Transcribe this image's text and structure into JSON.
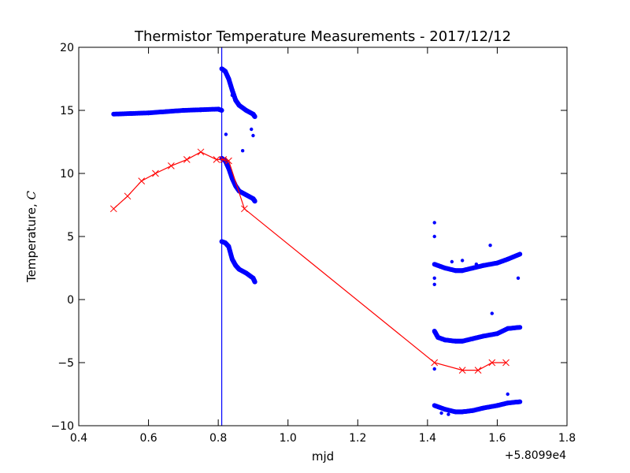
{
  "chart_data": {
    "type": "scatter",
    "title": "Thermistor Temperature Measurements - 2017/12/12",
    "xlabel": "mjd",
    "ylabel_text": "Temperature, ",
    "ylabel_symbol": "C",
    "offset_label": "+5.8099e4",
    "xlim": [
      0.4,
      1.8
    ],
    "ylim": [
      -10,
      20
    ],
    "xticks": [
      0.4,
      0.6,
      0.8,
      1.0,
      1.2,
      1.4,
      1.6,
      1.8
    ],
    "xtick_labels": [
      "0.4",
      "0.6",
      "0.8",
      "1.0",
      "1.2",
      "1.4",
      "1.6",
      "1.8"
    ],
    "yticks": [
      -10,
      -5,
      0,
      5,
      10,
      15,
      20
    ],
    "ytick_labels": [
      "−10",
      "−5",
      "0",
      "5",
      "10",
      "15",
      "20"
    ],
    "grid": false,
    "colors": {
      "scatter": "#0000ff",
      "line": "#ff0000",
      "vline": "#0000ff"
    },
    "vline_x": 0.81,
    "line_series": {
      "marker": "x",
      "x": [
        0.5,
        0.54,
        0.58,
        0.62,
        0.665,
        0.71,
        0.75,
        0.795,
        0.815,
        0.83,
        0.875,
        1.42,
        1.5,
        1.545,
        1.585,
        1.625
      ],
      "y": [
        7.2,
        8.2,
        9.4,
        10.0,
        10.6,
        11.1,
        11.7,
        11.1,
        11.1,
        11.0,
        7.2,
        -5.0,
        -5.6,
        -5.6,
        -5.0,
        -5.0
      ]
    },
    "scatter_series": [
      {
        "x": [
          0.5,
          0.55,
          0.6,
          0.65,
          0.7,
          0.75,
          0.8,
          0.81
        ],
        "y": [
          14.7,
          14.75,
          14.8,
          14.9,
          15.0,
          15.05,
          15.1,
          15.0
        ]
      },
      {
        "x": [
          0.81,
          0.82,
          0.83,
          0.84,
          0.85,
          0.86,
          0.88,
          0.9,
          0.905
        ],
        "y": [
          18.3,
          18.1,
          17.5,
          16.6,
          15.8,
          15.4,
          15.0,
          14.7,
          14.5
        ]
      },
      {
        "x": [
          0.81,
          0.82,
          0.83,
          0.84,
          0.85,
          0.86,
          0.88,
          0.9,
          0.905
        ],
        "y": [
          11.2,
          11.0,
          10.4,
          9.6,
          9.0,
          8.6,
          8.3,
          8.0,
          7.8
        ]
      },
      {
        "x": [
          0.81,
          0.82,
          0.83,
          0.84,
          0.85,
          0.86,
          0.88,
          0.9,
          0.905
        ],
        "y": [
          4.6,
          4.5,
          4.2,
          3.2,
          2.7,
          2.4,
          2.1,
          1.7,
          1.4
        ]
      },
      {
        "x": [
          1.42,
          1.45,
          1.48,
          1.5,
          1.53,
          1.56,
          1.6,
          1.63,
          1.665
        ],
        "y": [
          2.8,
          2.5,
          2.3,
          2.3,
          2.5,
          2.7,
          2.9,
          3.2,
          3.6
        ]
      },
      {
        "x": [
          1.42,
          1.43,
          1.45,
          1.48,
          1.5,
          1.53,
          1.56,
          1.6,
          1.63,
          1.665
        ],
        "y": [
          -2.5,
          -3.0,
          -3.2,
          -3.3,
          -3.3,
          -3.1,
          -2.9,
          -2.7,
          -2.3,
          -2.2
        ]
      },
      {
        "x": [
          1.42,
          1.45,
          1.48,
          1.5,
          1.53,
          1.56,
          1.6,
          1.63,
          1.665
        ],
        "y": [
          -8.4,
          -8.7,
          -8.9,
          -8.9,
          -8.8,
          -8.6,
          -8.4,
          -8.2,
          -8.1
        ]
      },
      {
        "x": [
          0.822,
          0.84,
          0.87,
          0.895,
          0.9,
          1.42,
          1.42,
          1.42,
          1.42,
          1.47,
          1.5,
          1.54,
          1.58,
          1.585,
          1.63,
          1.66,
          1.42,
          1.44,
          1.46
        ],
        "y": [
          13.1,
          16.2,
          11.8,
          13.5,
          13.0,
          6.1,
          5.0,
          1.7,
          1.2,
          3.0,
          3.1,
          2.8,
          4.3,
          -1.1,
          -7.5,
          1.7,
          -5.5,
          -9.0,
          -9.1
        ]
      }
    ]
  }
}
